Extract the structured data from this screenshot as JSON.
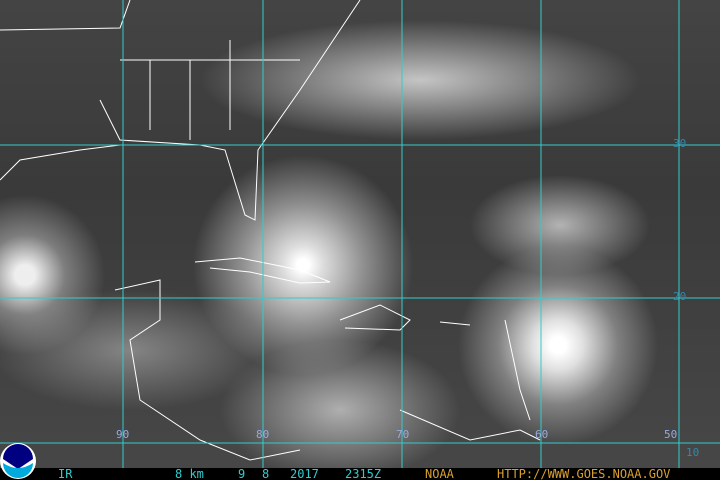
{
  "image": {
    "description_type": "GOES infrared satellite image",
    "grid_color": "#33cccc"
  },
  "grid": {
    "longitudes": [
      "90",
      "80",
      "70",
      "60",
      "50"
    ],
    "latitudes": [
      "30",
      "20",
      "10"
    ]
  },
  "footer": {
    "channel": "IR",
    "resolution": "8 km",
    "month": "9",
    "day": "8",
    "year": "2017",
    "time": "2315Z",
    "agency": "NOAA",
    "url": "HTTP://WWW.GOES.NOAA.GOV"
  },
  "logo": {
    "text": "NOAA",
    "colors": [
      "#000080",
      "#00aadd",
      "#ffffff"
    ]
  }
}
